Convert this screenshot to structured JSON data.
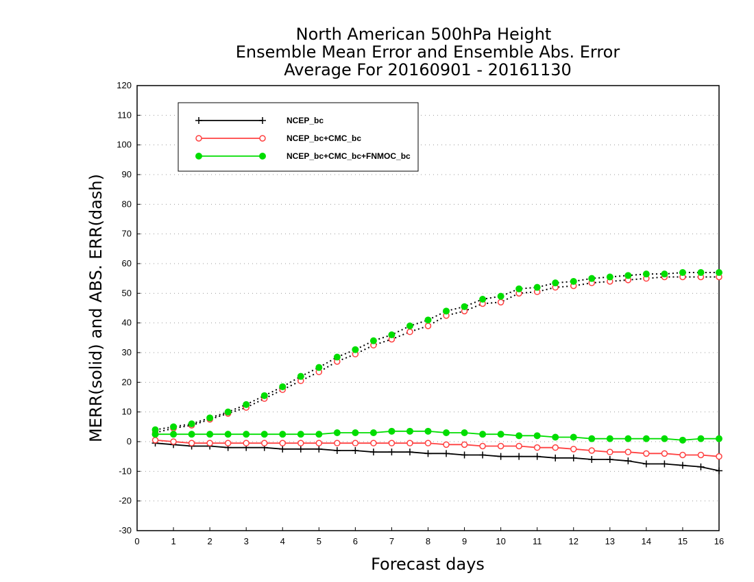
{
  "chart_data": {
    "type": "line",
    "title_lines": [
      "North American 500hPa Height",
      "Ensemble Mean Error and Ensemble Abs. Error",
      "Average For 20160901 - 20161130"
    ],
    "xlabel": "Forecast days",
    "ylabel": "MERR(solid) and ABS. ERR(dash)",
    "xlim": [
      0,
      16
    ],
    "ylim": [
      -30,
      120
    ],
    "xticks": [
      0,
      1,
      2,
      3,
      4,
      5,
      6,
      7,
      8,
      9,
      10,
      11,
      12,
      13,
      14,
      15,
      16
    ],
    "yticks": [
      -30,
      -20,
      -10,
      0,
      10,
      20,
      30,
      40,
      50,
      60,
      70,
      80,
      90,
      100,
      110,
      120
    ],
    "grid": true,
    "legend_position": "top-left",
    "x": [
      0.5,
      1,
      1.5,
      2,
      2.5,
      3,
      3.5,
      4,
      4.5,
      5,
      5.5,
      6,
      6.5,
      7,
      7.5,
      8,
      8.5,
      9,
      9.5,
      10,
      10.5,
      11,
      11.5,
      12,
      12.5,
      13,
      13.5,
      14,
      14.5,
      15,
      15.5,
      16
    ],
    "series": [
      {
        "name": "NCEP_bc",
        "color": "#000000",
        "marker": "plus",
        "merr": [
          -0.5,
          -1,
          -1.5,
          -1.5,
          -2,
          -2,
          -2,
          -2.5,
          -2.5,
          -2.5,
          -3,
          -3,
          -3.5,
          -3.5,
          -3.5,
          -4,
          -4,
          -4.5,
          -4.5,
          -5,
          -5,
          -5,
          -5.5,
          -5.5,
          -6,
          -6,
          -6.5,
          -7.5,
          -7.5,
          -8,
          -8.5,
          -9.8
        ],
        "abserr": null
      },
      {
        "name": "NCEP_bc+CMC_bc",
        "color": "#ff4040",
        "marker": "open-circle",
        "merr": [
          0.5,
          0,
          -0.5,
          -0.5,
          -0.5,
          -0.5,
          -0.5,
          -0.5,
          -0.5,
          -0.5,
          -0.5,
          -0.5,
          -0.5,
          -0.5,
          -0.5,
          -0.5,
          -1,
          -1,
          -1.5,
          -1.5,
          -1.5,
          -2,
          -2,
          -2.5,
          -3,
          -3.5,
          -3.5,
          -4,
          -4,
          -4.5,
          -4.5,
          -5
        ],
        "abserr": [
          3,
          4.5,
          5.5,
          7.5,
          9.5,
          11.5,
          14.5,
          17.5,
          20.5,
          23.5,
          27,
          29.5,
          32.5,
          34.5,
          37,
          39,
          42.5,
          44,
          46.5,
          47,
          50,
          50.5,
          52,
          52.5,
          53.5,
          54,
          54.5,
          55,
          55.5,
          55.5,
          55.5,
          55.5
        ]
      },
      {
        "name": "NCEP_bc+CMC_bc+FNMOC_bc",
        "color": "#00dd00",
        "marker": "filled-circle",
        "merr": [
          2.5,
          2.5,
          2.5,
          2.5,
          2.5,
          2.5,
          2.5,
          2.5,
          2.5,
          2.5,
          3,
          3,
          3,
          3.5,
          3.5,
          3.5,
          3,
          3,
          2.5,
          2.5,
          2,
          2,
          1.5,
          1.5,
          1,
          1,
          1,
          1,
          1,
          0.5,
          1,
          1
        ],
        "abserr": [
          4,
          5,
          6,
          8,
          10,
          12.5,
          15.5,
          18.5,
          22,
          25,
          28.5,
          31,
          34,
          36,
          39,
          41,
          44,
          45.5,
          48,
          49,
          51.5,
          52,
          53.5,
          54,
          55,
          55.5,
          56,
          56.5,
          56.5,
          57,
          57,
          57
        ]
      }
    ]
  }
}
